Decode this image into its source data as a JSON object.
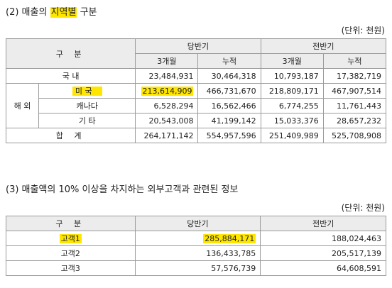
{
  "section1": {
    "title_prefix": "(2) 매출의 ",
    "title_highlight": "지역별",
    "title_suffix": " 구분",
    "unit": "(단위: 천원)",
    "headers": {
      "category": "구 분",
      "current_half": "당반기",
      "prior_half": "전반기",
      "three_months": "3개월",
      "cumulative": "누적"
    },
    "rows": [
      {
        "group": "",
        "label": "국 내",
        "v1": "23,484,931",
        "v2": "30,464,318",
        "v3": "10,793,187",
        "v4": "17,382,719"
      },
      {
        "group": "해 외",
        "label": "미 국",
        "v1": "213,614,909",
        "v2": "466,731,670",
        "v3": "218,809,171",
        "v4": "467,907,514"
      },
      {
        "group": "",
        "label": "캐나다",
        "v1": "6,528,294",
        "v2": "16,562,466",
        "v3": "6,774,255",
        "v4": "11,761,443"
      },
      {
        "group": "",
        "label": "기 타",
        "v1": "20,543,008",
        "v2": "41,199,142",
        "v3": "15,033,376",
        "v4": "28,657,232"
      },
      {
        "group": "",
        "label": "합 계",
        "v1": "264,171,142",
        "v2": "554,957,596",
        "v3": "251,409,989",
        "v4": "525,708,908"
      }
    ]
  },
  "section2": {
    "title": "(3) 매출액의 10% 이상을 차지하는 외부고객과 관련된 정보",
    "unit": "(단위: 천원)",
    "headers": {
      "category": "구 분",
      "current_half": "당반기",
      "prior_half": "전반기"
    },
    "rows": [
      {
        "label": "고객1",
        "current": "285,884,171",
        "prior": "188,024,463"
      },
      {
        "label": "고객2",
        "current": "136,433,785",
        "prior": "205,517,139"
      },
      {
        "label": "고객3",
        "current": "57,576,739",
        "prior": "64,608,591"
      }
    ]
  },
  "colors": {
    "highlight": "#ffe600",
    "header_bg": "#ececec",
    "border": "#9a9a9a"
  }
}
